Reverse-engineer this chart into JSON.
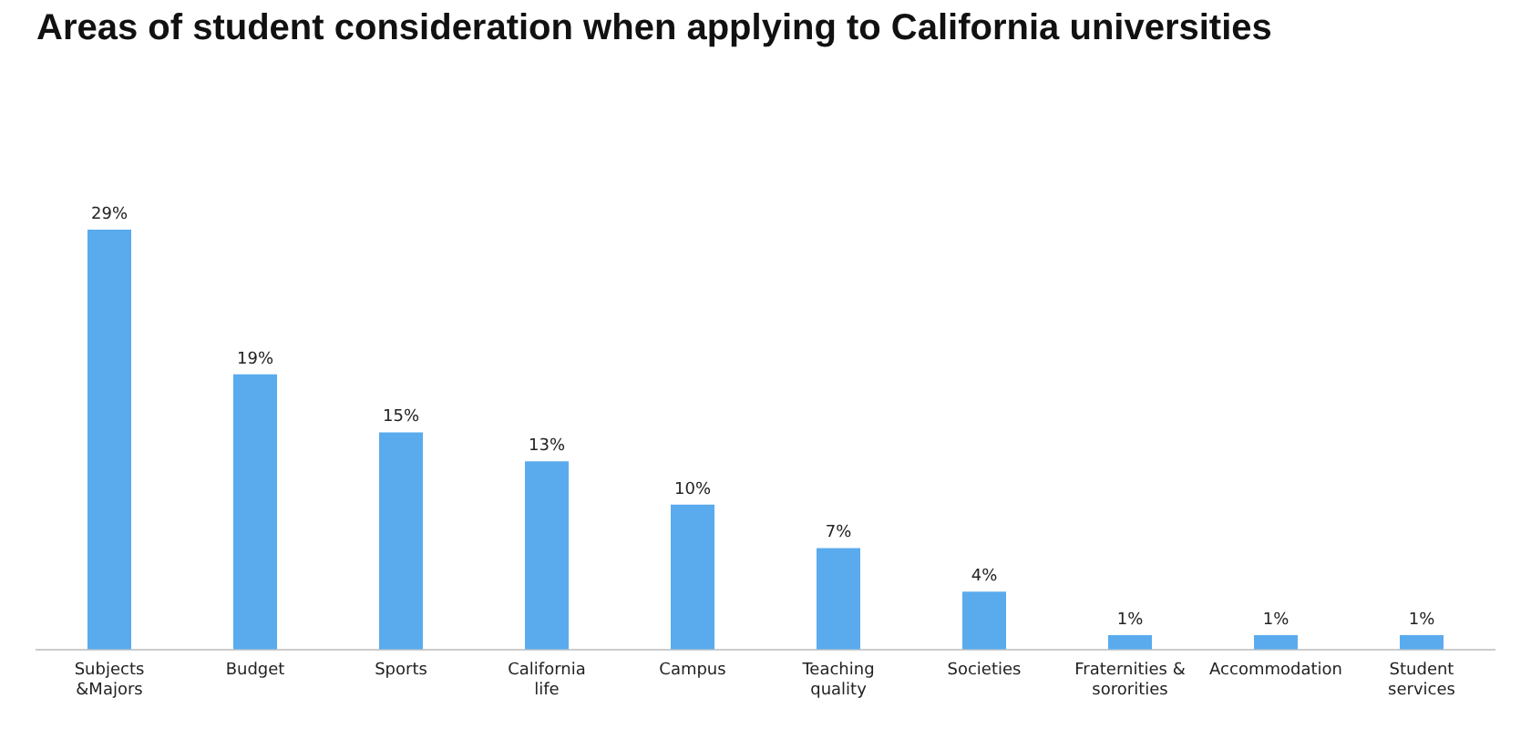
{
  "chart_data": {
    "type": "bar",
    "title": "Areas of student consideration when applying to California universities",
    "categories": [
      "Subjects &Majors",
      "Budget",
      "Sports",
      "California life",
      "Campus",
      "Teaching quality",
      "Societies",
      "Fraternities & sororities",
      "Accommodation",
      "Student services"
    ],
    "values": [
      29,
      19,
      15,
      13,
      10,
      7,
      4,
      1,
      1,
      1
    ],
    "value_labels": [
      "29%",
      "19%",
      "15%",
      "13%",
      "10%",
      "7%",
      "4%",
      "1%",
      "1%",
      "1%"
    ],
    "color": "#5aabee",
    "tick_labels": "x",
    "grid": false,
    "legend": false
  }
}
